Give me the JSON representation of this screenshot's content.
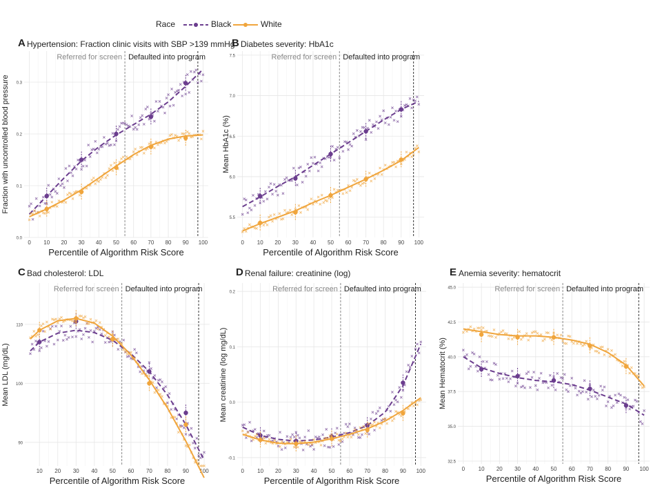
{
  "legend": {
    "title": "Race",
    "items": [
      {
        "name": "Black",
        "color": "#6b3d8e",
        "dash": "dashed"
      },
      {
        "name": "White",
        "color": "#f0a53c",
        "dash": "solid"
      }
    ]
  },
  "annotations": {
    "referred": "Referred for screen",
    "defaulted": "Defaulted into program"
  },
  "chart_data": [
    {
      "type": "scatter",
      "letter": "A",
      "title": "Hypertension: Fraction clinic visits with SBP >139 mmHg",
      "xlabel": "Percentile of Algorithm Risk Score",
      "ylabel": "Fraction with uncontrolled blood pressure",
      "xlim": [
        -3,
        103
      ],
      "ylim": [
        0,
        0.36
      ],
      "xticks": [
        0,
        10,
        20,
        30,
        40,
        50,
        60,
        70,
        80,
        90,
        100
      ],
      "yticks": [
        0.0,
        0.1,
        0.2,
        0.3
      ],
      "ytick_labels": [
        "0.0",
        "0.1",
        "0.2",
        "0.3"
      ],
      "vlines": [
        55,
        97
      ],
      "series": [
        {
          "name": "Black",
          "fit": [
            [
              0,
              0.045
            ],
            [
              10,
              0.08
            ],
            [
              20,
              0.115
            ],
            [
              30,
              0.148
            ],
            [
              40,
              0.175
            ],
            [
              50,
              0.198
            ],
            [
              60,
              0.218
            ],
            [
              70,
              0.238
            ],
            [
              80,
              0.262
            ],
            [
              90,
              0.292
            ],
            [
              100,
              0.325
            ]
          ],
          "points": [
            [
              10,
              0.08
            ],
            [
              30,
              0.15
            ],
            [
              50,
              0.2
            ],
            [
              70,
              0.233
            ],
            [
              90,
              0.298
            ]
          ]
        },
        {
          "name": "White",
          "fit": [
            [
              0,
              0.04
            ],
            [
              10,
              0.055
            ],
            [
              20,
              0.072
            ],
            [
              30,
              0.092
            ],
            [
              40,
              0.115
            ],
            [
              50,
              0.138
            ],
            [
              60,
              0.16
            ],
            [
              70,
              0.178
            ],
            [
              80,
              0.19
            ],
            [
              90,
              0.196
            ],
            [
              100,
              0.198
            ]
          ],
          "points": [
            [
              10,
              0.055
            ],
            [
              30,
              0.088
            ],
            [
              50,
              0.135
            ],
            [
              70,
              0.175
            ],
            [
              90,
              0.192
            ]
          ]
        }
      ]
    },
    {
      "type": "scatter",
      "letter": "B",
      "title": "Diabetes severity: HbA1c",
      "xlabel": "Percentile of Algorithm Risk Score",
      "ylabel": "Mean HbA1c (%)",
      "xlim": [
        -3,
        103
      ],
      "ylim": [
        5.25,
        7.55
      ],
      "xticks": [
        0,
        10,
        20,
        30,
        40,
        50,
        60,
        70,
        80,
        90,
        100
      ],
      "yticks": [
        5.5,
        6.0,
        6.5,
        7.0,
        7.5
      ],
      "ytick_labels": [
        "5.5",
        "6.0",
        "6.5",
        "7.0",
        "7.5"
      ],
      "vlines": [
        55,
        97
      ],
      "series": [
        {
          "name": "Black",
          "fit": [
            [
              0,
              5.63
            ],
            [
              10,
              5.75
            ],
            [
              20,
              5.88
            ],
            [
              30,
              6.0
            ],
            [
              40,
              6.14
            ],
            [
              50,
              6.28
            ],
            [
              60,
              6.42
            ],
            [
              70,
              6.56
            ],
            [
              80,
              6.7
            ],
            [
              90,
              6.83
            ],
            [
              100,
              6.93
            ]
          ],
          "points": [
            [
              10,
              5.76
            ],
            [
              30,
              5.98
            ],
            [
              50,
              6.28
            ],
            [
              70,
              6.56
            ],
            [
              90,
              6.83
            ]
          ]
        },
        {
          "name": "White",
          "fit": [
            [
              0,
              5.33
            ],
            [
              10,
              5.42
            ],
            [
              20,
              5.5
            ],
            [
              30,
              5.58
            ],
            [
              40,
              5.68
            ],
            [
              50,
              5.77
            ],
            [
              60,
              5.87
            ],
            [
              70,
              5.97
            ],
            [
              80,
              6.08
            ],
            [
              90,
              6.2
            ],
            [
              100,
              6.36
            ]
          ],
          "points": [
            [
              10,
              5.43
            ],
            [
              30,
              5.56
            ],
            [
              50,
              5.77
            ],
            [
              70,
              5.97
            ],
            [
              90,
              6.21
            ]
          ]
        }
      ]
    },
    {
      "type": "scatter",
      "letter": "C",
      "title": "Bad cholesterol: LDL",
      "xlabel": "Percentile of Algorithm Risk Score",
      "ylabel": "Mean LDL (mg/dL)",
      "xlim": [
        2,
        103
      ],
      "ylim": [
        86,
        117
      ],
      "xticks": [
        10,
        20,
        30,
        40,
        50,
        60,
        70,
        80,
        90,
        100
      ],
      "yticks": [
        90,
        100,
        110
      ],
      "ytick_labels": [
        "90",
        "100",
        "110"
      ],
      "vlines": [
        55,
        97
      ],
      "series": [
        {
          "name": "Black",
          "fit": [
            [
              5,
              105.5
            ],
            [
              10,
              107
            ],
            [
              20,
              108.5
            ],
            [
              30,
              109
            ],
            [
              40,
              108.6
            ],
            [
              50,
              107.3
            ],
            [
              60,
              105
            ],
            [
              70,
              102
            ],
            [
              80,
              98
            ],
            [
              90,
              93
            ],
            [
              100,
              87
            ]
          ],
          "points": [
            [
              10,
              107
            ],
            [
              30,
              110.5
            ],
            [
              50,
              107.5
            ],
            [
              70,
              102
            ],
            [
              90,
              95
            ]
          ]
        },
        {
          "name": "White",
          "fit": [
            [
              5,
              107.5
            ],
            [
              10,
              109
            ],
            [
              20,
              110.6
            ],
            [
              30,
              111
            ],
            [
              40,
              110.2
            ],
            [
              50,
              108
            ],
            [
              60,
              104.8
            ],
            [
              70,
              100.6
            ],
            [
              80,
              95.8
            ],
            [
              90,
              90.2
            ],
            [
              100,
              84
            ]
          ],
          "points": [
            [
              10,
              109
            ],
            [
              30,
              111
            ],
            [
              50,
              107.5
            ],
            [
              70,
              100
            ],
            [
              90,
              93
            ]
          ]
        }
      ]
    },
    {
      "type": "scatter",
      "letter": "D",
      "title": "Renal failure: creatinine (log)",
      "xlabel": "Percentile of Algorithm Risk Score",
      "ylabel": "Mean creatinine (log mg/dL)",
      "xlim": [
        -3,
        103
      ],
      "ylim": [
        -0.115,
        0.215
      ],
      "xticks": [
        0,
        10,
        20,
        30,
        40,
        50,
        60,
        70,
        80,
        90,
        100
      ],
      "yticks": [
        -0.1,
        0.0,
        0.1,
        0.2
      ],
      "ytick_labels": [
        "-0.1",
        "0.0",
        "0.1",
        "0.2"
      ],
      "vlines": [
        55,
        97
      ],
      "series": [
        {
          "name": "Black",
          "fit": [
            [
              0,
              -0.045
            ],
            [
              10,
              -0.06
            ],
            [
              20,
              -0.067
            ],
            [
              30,
              -0.07
            ],
            [
              40,
              -0.068
            ],
            [
              50,
              -0.063
            ],
            [
              60,
              -0.055
            ],
            [
              70,
              -0.042
            ],
            [
              80,
              -0.018
            ],
            [
              90,
              0.03
            ],
            [
              100,
              0.105
            ]
          ],
          "points": [
            [
              10,
              -0.06
            ],
            [
              30,
              -0.07
            ],
            [
              50,
              -0.062
            ],
            [
              70,
              -0.042
            ],
            [
              90,
              0.035
            ]
          ]
        },
        {
          "name": "White",
          "fit": [
            [
              0,
              -0.058
            ],
            [
              10,
              -0.068
            ],
            [
              20,
              -0.074
            ],
            [
              30,
              -0.075
            ],
            [
              40,
              -0.072
            ],
            [
              50,
              -0.066
            ],
            [
              60,
              -0.058
            ],
            [
              70,
              -0.048
            ],
            [
              80,
              -0.034
            ],
            [
              90,
              -0.015
            ],
            [
              100,
              0.008
            ]
          ],
          "points": [
            [
              10,
              -0.068
            ],
            [
              30,
              -0.075
            ],
            [
              50,
              -0.066
            ],
            [
              70,
              -0.05
            ],
            [
              90,
              -0.02
            ]
          ]
        }
      ]
    },
    {
      "type": "scatter",
      "letter": "E",
      "title": "Anemia severity: hematocrit",
      "xlabel": "Percentile of Algorithm Risk Score",
      "ylabel": "Mean Hematocrit (%)",
      "xlim": [
        -3,
        103
      ],
      "ylim": [
        32.3,
        45.3
      ],
      "xticks": [
        0,
        10,
        20,
        30,
        40,
        50,
        60,
        70,
        80,
        90,
        100
      ],
      "yticks": [
        32.5,
        35.0,
        37.5,
        40.0,
        42.5,
        45.0
      ],
      "ytick_labels": [
        "32.5",
        "35.0",
        "37.5",
        "40.0",
        "42.5",
        "45.0"
      ],
      "vlines": [
        55,
        97
      ],
      "series": [
        {
          "name": "Black",
          "fit": [
            [
              0,
              40.0
            ],
            [
              10,
              39.2
            ],
            [
              20,
              38.8
            ],
            [
              30,
              38.5
            ],
            [
              40,
              38.3
            ],
            [
              50,
              38.2
            ],
            [
              60,
              38.0
            ],
            [
              70,
              37.6
            ],
            [
              80,
              37.1
            ],
            [
              90,
              36.6
            ],
            [
              100,
              35.8
            ]
          ],
          "points": [
            [
              10,
              39.1
            ],
            [
              30,
              38.6
            ],
            [
              50,
              38.3
            ],
            [
              70,
              37.7
            ],
            [
              90,
              36.5
            ]
          ]
        },
        {
          "name": "White",
          "fit": [
            [
              0,
              42.0
            ],
            [
              10,
              41.8
            ],
            [
              20,
              41.6
            ],
            [
              30,
              41.5
            ],
            [
              40,
              41.5
            ],
            [
              50,
              41.4
            ],
            [
              60,
              41.2
            ],
            [
              70,
              40.9
            ],
            [
              80,
              40.3
            ],
            [
              90,
              39.4
            ],
            [
              100,
              37.9
            ]
          ],
          "points": [
            [
              10,
              41.6
            ],
            [
              30,
              41.4
            ],
            [
              50,
              41.4
            ],
            [
              70,
              40.8
            ],
            [
              90,
              39.3
            ]
          ]
        }
      ]
    }
  ]
}
